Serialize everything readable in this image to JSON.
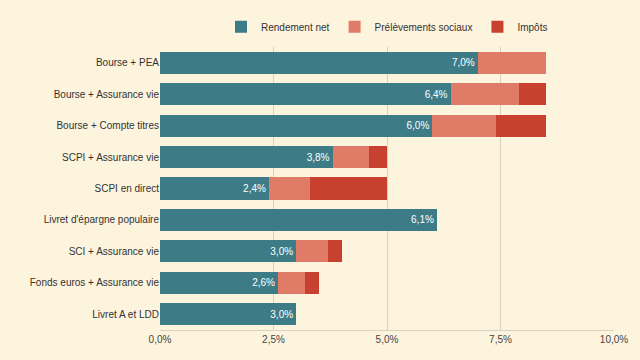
{
  "chart_data": {
    "type": "bar",
    "orientation": "horizontal",
    "stacked": true,
    "data_labels": true,
    "grid": true,
    "legend": "top",
    "categories": [
      "Bourse + PEA",
      "Bourse + Assurance vie",
      "Bourse + Compte titres",
      "SCPI + Assurance vie",
      "SCPI en direct",
      "Livret d'épargne populaire",
      "SCI + Assurance vie",
      "Fonds euros + Assurance vie",
      "Livret A et LDD"
    ],
    "series": [
      {
        "name": "Rendement net",
        "color": "#3d7c86",
        "values": [
          7.0,
          6.4,
          6.0,
          3.8,
          2.4,
          6.1,
          3.0,
          2.6,
          3.0
        ],
        "value_labels": [
          "7,0%",
          "6,4%",
          "6,0%",
          "3,8%",
          "2,4%",
          "6,1%",
          "3,0%",
          "2,6%",
          "3,0%"
        ]
      },
      {
        "name": "Prélèvements sociaux",
        "color": "#e07b68",
        "values": [
          1.5,
          1.5,
          1.4,
          0.8,
          0.9,
          0,
          0.7,
          0.6,
          0
        ]
      },
      {
        "name": "Impôts",
        "color": "#c8412f",
        "values": [
          0,
          0.6,
          1.1,
          0.4,
          1.7,
          0,
          0.3,
          0.3,
          0
        ]
      }
    ],
    "xlim": [
      0,
      10
    ],
    "xticks": [
      {
        "value": 0,
        "label": "0,0%"
      },
      {
        "value": 2.5,
        "label": "2,5%"
      },
      {
        "value": 5,
        "label": "5,0%"
      },
      {
        "value": 7.5,
        "label": "7,5%"
      },
      {
        "value": 10,
        "label": "10,0%"
      }
    ]
  }
}
